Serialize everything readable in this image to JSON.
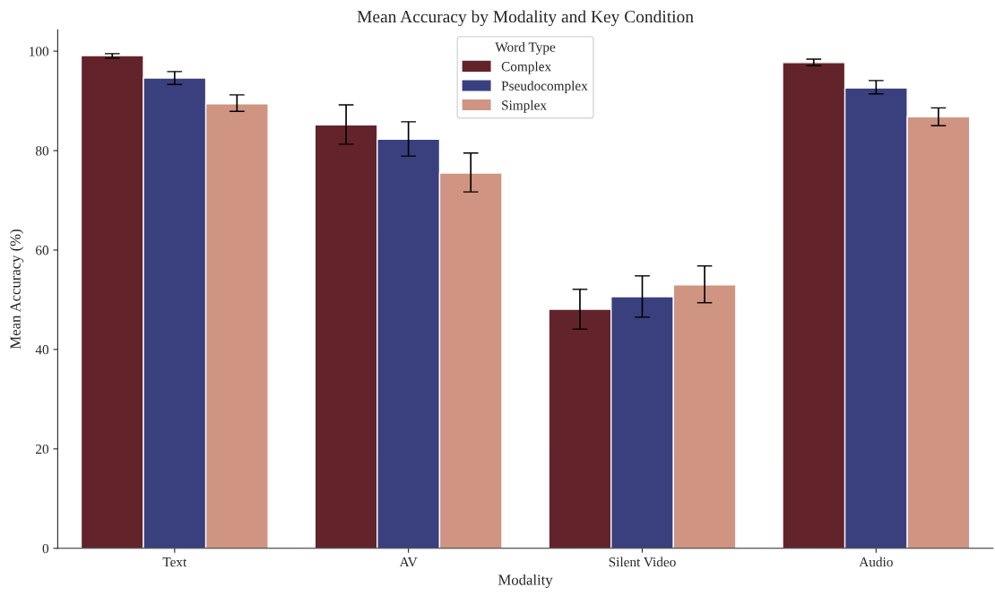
{
  "chart_data": {
    "type": "bar",
    "title": "Mean Accuracy by Modality and Key Condition",
    "xlabel": "Modality",
    "ylabel": "Mean Accuracy (%)",
    "legend_title": "Word Type",
    "categories": [
      "Text",
      "AV",
      "Silent Video",
      "Audio"
    ],
    "series": [
      {
        "name": "Complex",
        "color": "#62242a",
        "values": [
          99.1,
          85.2,
          48.1,
          97.7
        ],
        "errors": [
          [
            98.6,
            99.5
          ],
          [
            81.3,
            89.2
          ],
          [
            44.1,
            52.1
          ],
          [
            97.1,
            98.4
          ]
        ]
      },
      {
        "name": "Pseudocomplex",
        "color": "#3a3f7e",
        "values": [
          94.6,
          82.3,
          50.6,
          92.6
        ],
        "errors": [
          [
            93.3,
            95.9
          ],
          [
            78.9,
            85.8
          ],
          [
            46.5,
            54.8
          ],
          [
            91.4,
            94.1
          ]
        ]
      },
      {
        "name": "Simplex",
        "color": "#d09482",
        "values": [
          89.4,
          75.5,
          53.0,
          86.8
        ],
        "errors": [
          [
            87.9,
            91.2
          ],
          [
            71.7,
            79.5
          ],
          [
            49.4,
            56.8
          ],
          [
            85.0,
            88.6
          ]
        ]
      }
    ],
    "ylim": [
      0,
      104.3
    ],
    "yticks": [
      0,
      20,
      40,
      60,
      80,
      100
    ],
    "grid": false,
    "legend": "top"
  }
}
